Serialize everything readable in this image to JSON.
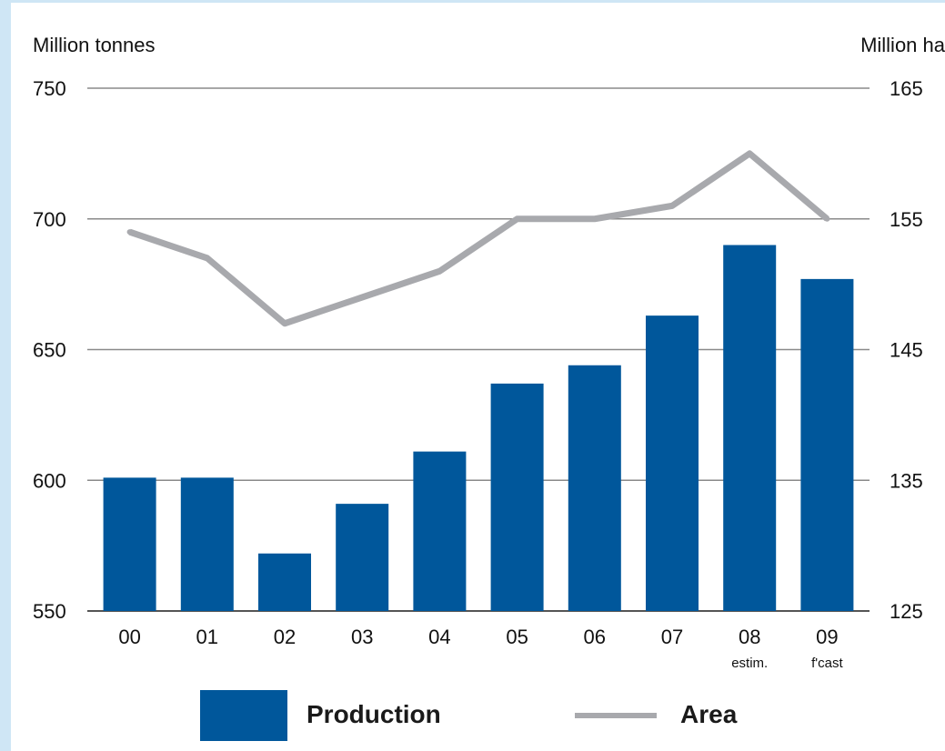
{
  "chart_data": {
    "type": "bar",
    "left_axis_title": "Million tonnes",
    "right_axis_title": "Million ha",
    "categories": [
      "00",
      "01",
      "02",
      "03",
      "04",
      "05",
      "06",
      "07",
      "08",
      "09"
    ],
    "category_sublabels": [
      "",
      "",
      "",
      "",
      "",
      "",
      "",
      "",
      "estim.",
      "f'cast"
    ],
    "ylim": [
      550,
      750
    ],
    "y2lim": [
      125,
      165
    ],
    "y_ticks": [
      "550",
      "600",
      "650",
      "700",
      "750"
    ],
    "y2_ticks": [
      "125",
      "135",
      "145",
      "155",
      "165"
    ],
    "grid": true,
    "legend_position": "bottom",
    "series": [
      {
        "name": "Production",
        "type": "bar",
        "axis": "left",
        "color": "#00579b",
        "values": [
          601,
          601,
          572,
          591,
          611,
          637,
          644,
          663,
          690,
          677
        ]
      },
      {
        "name": "Area",
        "type": "line",
        "axis": "right",
        "color": "#a8a9ad",
        "values": [
          154,
          152,
          147,
          149,
          151,
          155,
          155,
          156,
          160,
          155
        ]
      }
    ]
  }
}
